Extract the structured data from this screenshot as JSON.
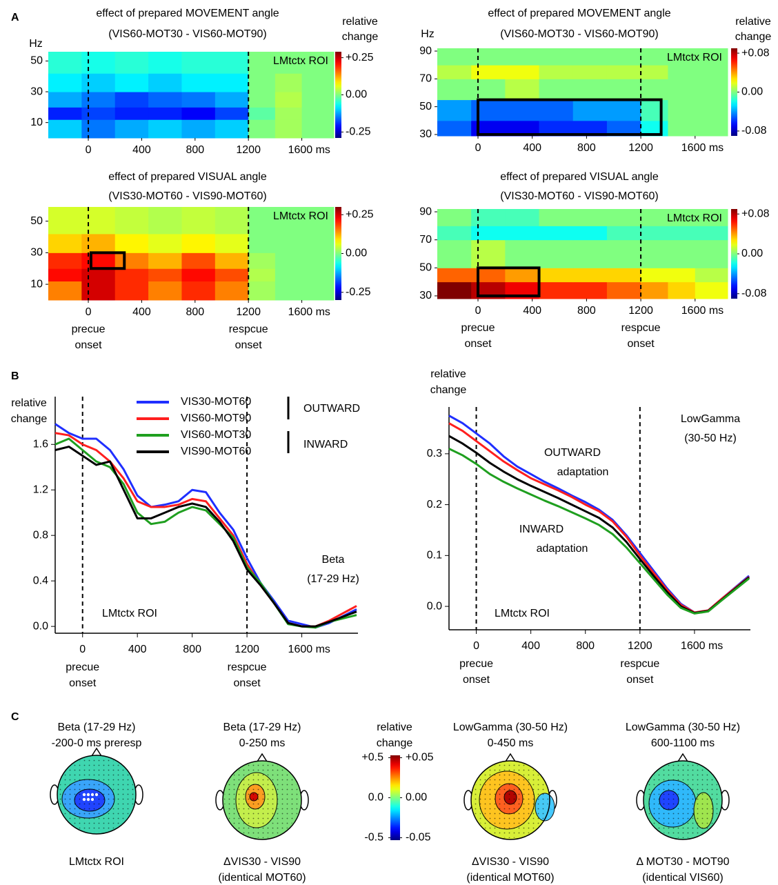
{
  "panel_labels": [
    "A",
    "B",
    "C"
  ],
  "chart_data": [
    {
      "type": "heatmap",
      "title": "effect of prepared MOVEMENT angle",
      "subtitle": "(VIS60-MOT30  -  VIS60-MOT90)",
      "ylabel": "Hz",
      "colormap": "jet",
      "xbins": [
        -300,
        -50,
        200,
        450,
        700,
        950,
        1200,
        1400,
        1600,
        1840
      ],
      "ybins": [
        0,
        12,
        20,
        30,
        42,
        56
      ],
      "z": [
        [
          -0.1,
          -0.15,
          -0.12,
          -0.1,
          -0.12,
          -0.1,
          0,
          0.02,
          0
        ],
        [
          -0.2,
          -0.18,
          -0.2,
          -0.2,
          -0.22,
          -0.18,
          -0.02,
          0.02,
          0
        ],
        [
          -0.12,
          -0.15,
          -0.18,
          -0.16,
          -0.15,
          -0.12,
          0,
          0.03,
          0
        ],
        [
          -0.08,
          -0.1,
          -0.08,
          -0.1,
          -0.08,
          -0.08,
          0,
          0.02,
          0
        ],
        [
          -0.05,
          -0.06,
          -0.05,
          -0.06,
          -0.05,
          -0.05,
          0,
          0,
          0
        ]
      ],
      "xlim": [
        -300,
        1840
      ],
      "ylim": [
        0,
        56
      ],
      "xticks": [
        0,
        400,
        800,
        1200,
        {
          "value": 1600,
          "label": "1600 ms"
        }
      ],
      "yticks": [
        10,
        30,
        50
      ],
      "clim": [
        -0.29,
        0.29
      ],
      "cticks": [
        {
          "value": 0.25,
          "label": "+0.25"
        },
        {
          "value": 0,
          "label": "0.00"
        },
        -0.25
      ],
      "clabel": [
        "relative",
        "change"
      ],
      "annotation": "LMtctx ROI",
      "vlines": [
        0,
        1200
      ]
    },
    {
      "type": "heatmap",
      "title": "effect of prepared MOVEMENT angle",
      "subtitle": "(VIS60-MOT30  -  VIS60-MOT90)",
      "ylabel": "Hz",
      "colormap": "jet",
      "xbins": [
        -300,
        -50,
        200,
        450,
        700,
        950,
        1200,
        1400,
        1600,
        1840
      ],
      "ybins": [
        29,
        40,
        55,
        70,
        80,
        92
      ],
      "z": [
        [
          -0.05,
          -0.07,
          -0.07,
          -0.06,
          -0.06,
          -0.05,
          -0.02,
          0,
          0
        ],
        [
          -0.04,
          -0.05,
          -0.05,
          -0.05,
          -0.04,
          -0.04,
          -0.01,
          0,
          0
        ],
        [
          0,
          0,
          0.01,
          0,
          0,
          0,
          0,
          0,
          0
        ],
        [
          0.01,
          0.02,
          0.02,
          0.01,
          0.01,
          0.01,
          0.01,
          0,
          0
        ],
        [
          0,
          0,
          0,
          0,
          0,
          0,
          0,
          0,
          0
        ]
      ],
      "xlim": [
        -300,
        1840
      ],
      "ylim": [
        29,
        92
      ],
      "xticks": [
        0,
        400,
        800,
        1200,
        {
          "value": 1600,
          "label": "1600 ms"
        }
      ],
      "yticks": [
        30,
        50,
        70,
        90
      ],
      "clim": [
        -0.09,
        0.09
      ],
      "cticks": [
        {
          "value": 0.08,
          "label": "+0.08"
        },
        {
          "value": 0,
          "label": "0.00"
        },
        -0.08
      ],
      "clabel": [
        "relative",
        "change"
      ],
      "annotation": "LMtctx ROI",
      "vlines": [
        0,
        1200
      ],
      "box": {
        "x": [
          0,
          1350
        ],
        "y": [
          30,
          55
        ]
      }
    },
    {
      "type": "heatmap",
      "title": "effect of prepared VISUAL angle",
      "subtitle": "(VIS30-MOT60  -  VIS90-MOT60)",
      "colormap": "jet",
      "xbins": [
        -300,
        -50,
        200,
        450,
        700,
        950,
        1200,
        1400,
        1600,
        1840
      ],
      "ybins": [
        0,
        12,
        20,
        30,
        42,
        59
      ],
      "z": [
        [
          0.15,
          0.25,
          0.2,
          0.15,
          0.2,
          0.15,
          0.02,
          0,
          0
        ],
        [
          0.22,
          0.25,
          0.2,
          0.18,
          0.22,
          0.18,
          0.03,
          0,
          0
        ],
        [
          0.2,
          0.22,
          0.15,
          0.12,
          0.18,
          0.12,
          0.02,
          0,
          0
        ],
        [
          0.1,
          0.12,
          0.08,
          0.06,
          0.08,
          0.06,
          0,
          0,
          0
        ],
        [
          0.05,
          0.05,
          0.04,
          0.03,
          0.04,
          0.03,
          0,
          0,
          0
        ]
      ],
      "xlim": [
        -300,
        1840
      ],
      "ylim": [
        0,
        59
      ],
      "xticks": [
        0,
        400,
        800,
        1200,
        {
          "value": 1600,
          "label": "1600 ms"
        }
      ],
      "yticks": [
        10,
        30,
        50
      ],
      "clim": [
        -0.3,
        0.3
      ],
      "cticks": [
        {
          "value": 0.25,
          "label": "+0.25"
        },
        {
          "value": 0,
          "label": "0.00"
        },
        -0.25
      ],
      "annotation": "LMtctx ROI",
      "vlines": [
        0,
        1200
      ],
      "vline_labels": [
        [
          "precue",
          "onset"
        ],
        [
          "respcue",
          "onset"
        ]
      ],
      "box": {
        "x": [
          20,
          270
        ],
        "y": [
          20,
          30
        ]
      }
    },
    {
      "type": "heatmap",
      "title": "effect of prepared VISUAL angle",
      "subtitle": "(VIS30-MOT60  -  VIS90-MOT60)",
      "colormap": "jet",
      "xbins": [
        -300,
        -50,
        200,
        450,
        700,
        950,
        1200,
        1400,
        1600,
        1840
      ],
      "ybins": [
        28,
        40,
        50,
        70,
        80,
        92
      ],
      "z": [
        [
          0.09,
          0.08,
          0.07,
          0.06,
          0.06,
          0.05,
          0.04,
          0.03,
          0.02
        ],
        [
          0.05,
          0.05,
          0.04,
          0.03,
          0.03,
          0.03,
          0.02,
          0.02,
          0.01
        ],
        [
          0,
          0.01,
          0,
          0,
          0,
          0,
          0,
          0,
          0
        ],
        [
          -0.01,
          -0.02,
          -0.02,
          -0.02,
          -0.02,
          -0.01,
          -0.01,
          -0.01,
          -0.01
        ],
        [
          0,
          -0.01,
          -0.01,
          0,
          0,
          0,
          0,
          0,
          0
        ]
      ],
      "xlim": [
        -300,
        1840
      ],
      "ylim": [
        28,
        92
      ],
      "xticks": [
        0,
        400,
        800,
        1200,
        {
          "value": 1600,
          "label": "1600 ms"
        }
      ],
      "yticks": [
        30,
        50,
        70,
        90
      ],
      "clim": [
        -0.09,
        0.09
      ],
      "cticks": [
        {
          "value": 0.08,
          "label": "+0.08"
        },
        {
          "value": 0,
          "label": "0.00"
        },
        -0.08
      ],
      "annotation": "LMtctx ROI",
      "vlines": [
        0,
        1200
      ],
      "vline_labels": [
        [
          "precue",
          "onset"
        ],
        [
          "respcue",
          "onset"
        ]
      ],
      "box": {
        "x": [
          0,
          450
        ],
        "y": [
          30,
          50
        ]
      }
    },
    {
      "type": "line",
      "ylabel": [
        "relative",
        "change"
      ],
      "x": [
        -200,
        -100,
        0,
        100,
        200,
        300,
        400,
        500,
        600,
        700,
        800,
        900,
        1000,
        1100,
        1200,
        1300,
        1400,
        1500,
        1600,
        1700,
        1800,
        2000
      ],
      "series": [
        {
          "name": "VIS30-MOT60",
          "color": "#1f2fff",
          "values": [
            1.78,
            1.7,
            1.65,
            1.65,
            1.55,
            1.38,
            1.15,
            1.05,
            1.07,
            1.1,
            1.2,
            1.18,
            1.0,
            0.85,
            0.6,
            0.38,
            0.22,
            0.05,
            0.02,
            -0.01,
            0.03,
            0.15
          ]
        },
        {
          "name": "VIS60-MOT90",
          "color": "#ff1f1f",
          "values": [
            1.7,
            1.68,
            1.6,
            1.55,
            1.45,
            1.3,
            1.1,
            1.05,
            1.05,
            1.07,
            1.12,
            1.1,
            0.95,
            0.8,
            0.55,
            0.36,
            0.2,
            0.03,
            0.0,
            0.0,
            0.05,
            0.18
          ]
        },
        {
          "name": "VIS60-MOT30",
          "color": "#1f9f1f",
          "values": [
            1.6,
            1.65,
            1.55,
            1.45,
            1.4,
            1.25,
            1.0,
            0.9,
            0.92,
            1.0,
            1.05,
            1.02,
            0.9,
            0.78,
            0.52,
            0.38,
            0.2,
            0.02,
            0.0,
            -0.01,
            0.04,
            0.1
          ]
        },
        {
          "name": "VIS90-MOT60",
          "color": "#000000",
          "values": [
            1.55,
            1.58,
            1.5,
            1.42,
            1.45,
            1.2,
            0.95,
            0.95,
            1.0,
            1.05,
            1.08,
            1.05,
            0.92,
            0.75,
            0.5,
            0.36,
            0.2,
            0.03,
            0.0,
            0.0,
            0.04,
            0.13
          ]
        }
      ],
      "xlim": [
        -200,
        2010
      ],
      "ylim": [
        -0.06,
        2.02
      ],
      "xticks": [
        0,
        400,
        800,
        1200,
        {
          "value": 1600,
          "label": "1600 ms"
        }
      ],
      "yticks": [
        {
          "value": 0,
          "label": "0.0"
        },
        0.4,
        0.8,
        1.2,
        1.6
      ],
      "vlines": [
        0,
        1200
      ],
      "vline_labels": [
        [
          "precue",
          "onset"
        ],
        [
          "respcue",
          "onset"
        ]
      ],
      "annotations": [
        "OUTWARD",
        "INWARD",
        "Beta",
        "(17-29 Hz)",
        "LMtctx ROI"
      ]
    },
    {
      "type": "line",
      "ylabel": [
        "relative",
        "change"
      ],
      "x": [
        -200,
        -100,
        0,
        100,
        200,
        300,
        400,
        500,
        600,
        700,
        800,
        900,
        1000,
        1100,
        1200,
        1300,
        1400,
        1500,
        1600,
        1700,
        1800,
        2000
      ],
      "series": [
        {
          "color": "#1f2fff",
          "values": [
            0.375,
            0.36,
            0.34,
            0.32,
            0.295,
            0.275,
            0.26,
            0.245,
            0.232,
            0.218,
            0.205,
            0.19,
            0.17,
            0.14,
            0.105,
            0.07,
            0.035,
            0.005,
            -0.012,
            -0.008,
            0.015,
            0.06
          ]
        },
        {
          "color": "#ff1f1f",
          "values": [
            0.36,
            0.345,
            0.325,
            0.305,
            0.285,
            0.268,
            0.252,
            0.24,
            0.228,
            0.215,
            0.2,
            0.187,
            0.167,
            0.137,
            0.1,
            0.066,
            0.032,
            0.003,
            -0.012,
            -0.008,
            0.015,
            0.058
          ]
        },
        {
          "color": "#000000",
          "values": [
            0.335,
            0.32,
            0.302,
            0.282,
            0.265,
            0.25,
            0.237,
            0.225,
            0.213,
            0.2,
            0.187,
            0.174,
            0.155,
            0.127,
            0.093,
            0.06,
            0.028,
            0.0,
            -0.013,
            -0.009,
            0.013,
            0.057
          ]
        },
        {
          "color": "#1f9f1f",
          "values": [
            0.31,
            0.297,
            0.28,
            0.26,
            0.245,
            0.232,
            0.22,
            0.208,
            0.197,
            0.185,
            0.173,
            0.16,
            0.142,
            0.116,
            0.085,
            0.054,
            0.023,
            -0.003,
            -0.014,
            -0.01,
            0.012,
            0.055
          ]
        }
      ],
      "xlim": [
        -200,
        2010
      ],
      "ylim": [
        -0.046,
        0.392
      ],
      "xticks": [
        0,
        400,
        800,
        1200,
        {
          "value": 1600,
          "label": "1600 ms"
        }
      ],
      "yticks": [
        {
          "value": 0,
          "label": "0.0"
        },
        0.1,
        0.2,
        0.3
      ],
      "vlines": [
        0,
        1200
      ],
      "vline_labels": [
        [
          "precue",
          "onset"
        ],
        [
          "respcue",
          "onset"
        ]
      ],
      "annotations": [
        "LowGamma",
        "(30-50 Hz)",
        "OUTWARD",
        "adaptation",
        "INWARD",
        "adaptation",
        "LMtctx ROI"
      ]
    },
    {
      "type": "colorbar",
      "title": [
        "relative",
        "change"
      ],
      "colormap": "jet",
      "ylim": [
        -0.53,
        0.53
      ],
      "yticks": [
        {
          "value": 0.5,
          "label": "+0.5"
        },
        {
          "value": 0,
          "label": "0.0"
        },
        -0.5
      ],
      "y2lim": [
        -0.053,
        0.053
      ],
      "y2ticks": [
        {
          "value": 0.05,
          "label": "+0.05"
        },
        {
          "value": 0,
          "label": "0.00"
        },
        -0.05
      ]
    }
  ],
  "topomaps": [
    {
      "title": [
        "Beta (17-29 Hz)",
        "-200-0 ms preresp"
      ],
      "caption": [
        "LMtctx ROI"
      ]
    },
    {
      "title": [
        "Beta (17-29 Hz)",
        "0-250 ms"
      ],
      "caption": [
        "ΔVIS30 - VIS90",
        "(identical MOT60)"
      ]
    },
    {
      "title": [
        "LowGamma (30-50 Hz)",
        "0-450 ms"
      ],
      "caption": [
        "ΔVIS30 - VIS90",
        "(identical MOT60)"
      ]
    },
    {
      "title": [
        "LowGamma (30-50 Hz)",
        "600-1100 ms"
      ],
      "caption": [
        "Δ MOT30 - MOT90",
        "(identical VIS60)"
      ]
    }
  ]
}
